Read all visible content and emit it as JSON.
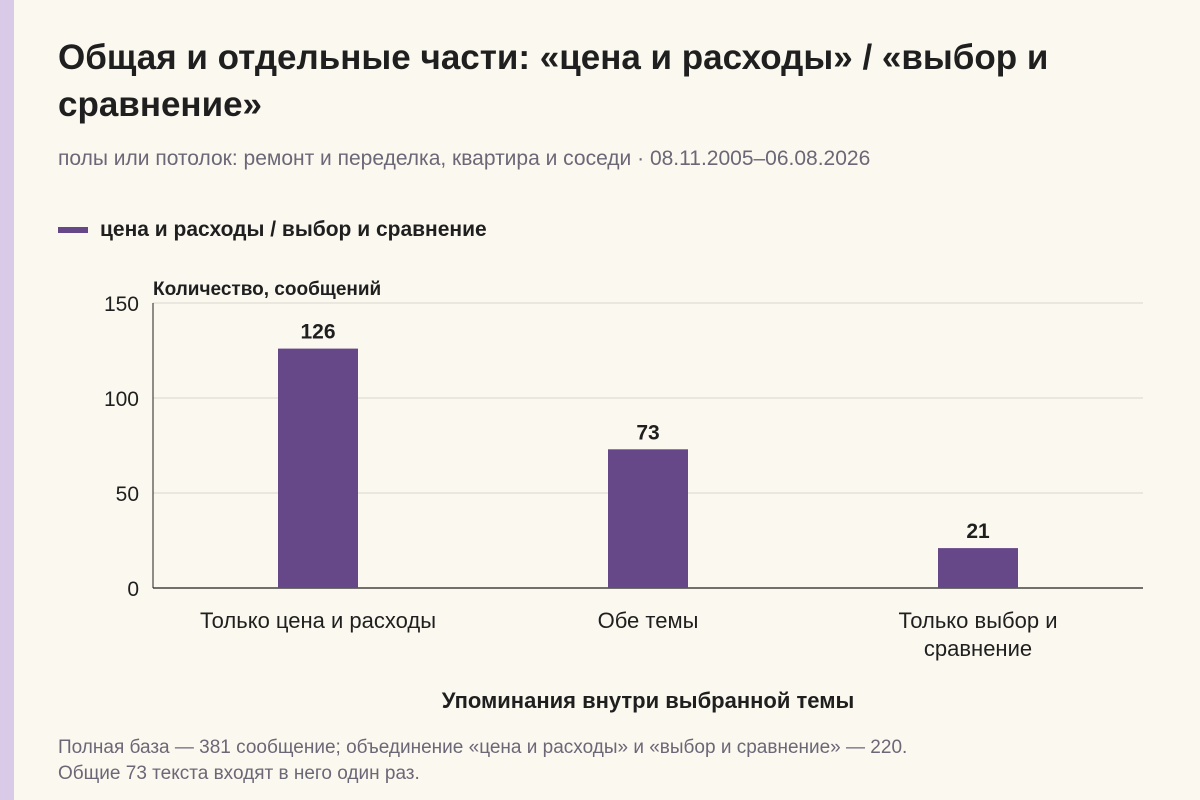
{
  "colors": {
    "background": "#fbf8ef",
    "bar": "#664889",
    "accent_strip": "#d9cbe8",
    "grid": "#d9d6cc"
  },
  "title": "Общая и отдельные части: «цена и расходы» / «выбор и сравнение»",
  "subtitle": "полы или потолок: ремонт и переделка, квартира и соседи · 08.11.2005–06.08.2026",
  "footnote_lines": [
    "Полная база — 381 сообщение; объединение «цена и расходы» и «выбор и сравнение» — 220.",
    "Общие 73 текста входят в него один раз."
  ],
  "chart_data": {
    "type": "bar",
    "categories": [
      [
        "Только цена и расходы"
      ],
      [
        "Обе темы"
      ],
      [
        "Только выбор и",
        "сравнение"
      ]
    ],
    "series": [
      {
        "name": "цена и расходы / выбор и сравнение",
        "values": [
          126,
          73,
          21
        ]
      }
    ],
    "data_labels": [
      "126",
      "73",
      "21"
    ],
    "ylabel": "Количество, сообщений",
    "xlabel": "Упоминания внутри выбранной темы",
    "ylim": [
      0,
      150
    ],
    "yticks": [
      0,
      50,
      100,
      150
    ],
    "grid": true,
    "legend_position": "top-left"
  }
}
